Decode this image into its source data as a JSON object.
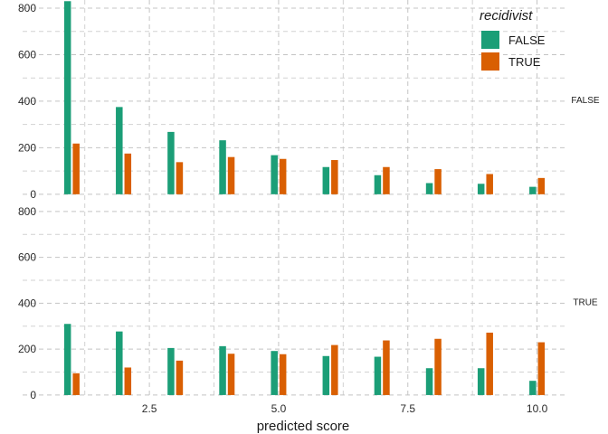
{
  "chart_data": {
    "type": "bar",
    "xlabel": "predicted score",
    "ylabel": "",
    "x": [
      1,
      2,
      3,
      4,
      5,
      6,
      7,
      8,
      9,
      10
    ],
    "x_ticks": [
      2.5,
      5.0,
      7.5,
      10.0
    ],
    "x_tick_labels": [
      "2.5",
      "5.0",
      "7.5",
      "10.0"
    ],
    "xlim": [
      0.45,
      10.55
    ],
    "ylim": [
      -20,
      835
    ],
    "y_ticks": [
      0,
      200,
      400,
      600,
      800
    ],
    "y_tick_labels": [
      "0",
      "200",
      "400",
      "600",
      "800"
    ],
    "grid": true,
    "legend": {
      "title": "recidivist",
      "position": "top-right",
      "entries": [
        "FALSE",
        "TRUE"
      ]
    },
    "colors": {
      "FALSE": "#1b9e77",
      "TRUE": "#d95f02"
    },
    "facets": [
      {
        "label": "FALSE",
        "series": [
          {
            "name": "FALSE",
            "values": [
              830,
              375,
              268,
              232,
              168,
              117,
              82,
              48,
              45,
              32
            ]
          },
          {
            "name": "TRUE",
            "values": [
              218,
              175,
              138,
              160,
              152,
              147,
              117,
              108,
              87,
              70
            ]
          }
        ]
      },
      {
        "label": "TRUE",
        "series": [
          {
            "name": "FALSE",
            "values": [
              310,
              277,
              205,
              213,
              192,
              170,
              167,
              117,
              117,
              62
            ]
          },
          {
            "name": "TRUE",
            "values": [
              95,
              120,
              150,
              180,
              178,
              218,
              238,
              245,
              272,
              230
            ]
          }
        ]
      }
    ]
  }
}
